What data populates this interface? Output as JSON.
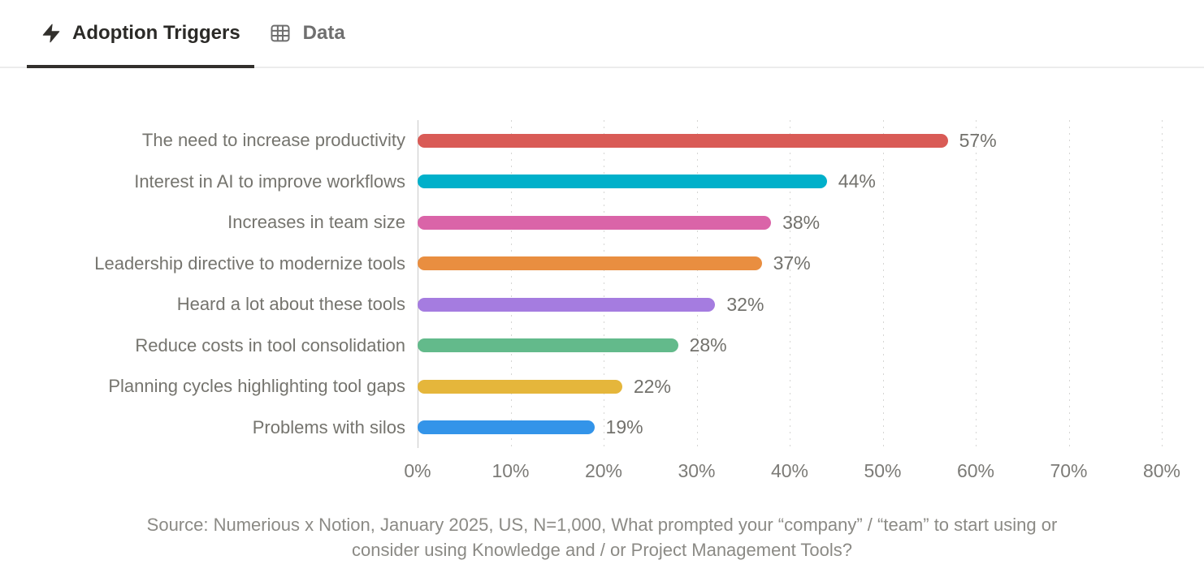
{
  "tabs": [
    {
      "label": "Adoption Triggers",
      "icon": "lightning-icon",
      "active": true
    },
    {
      "label": "Data",
      "icon": "table-icon",
      "active": false
    }
  ],
  "chart_data": {
    "type": "bar",
    "orientation": "horizontal",
    "title": "Adoption Triggers",
    "categories": [
      "The need to increase productivity",
      "Interest in AI to improve workflows",
      "Increases in team size",
      "Leadership directive to modernize tools",
      "Heard a lot about these tools",
      "Reduce costs in tool consolidation",
      "Planning cycles highlighting tool gaps",
      "Problems with silos"
    ],
    "values": [
      57,
      44,
      38,
      37,
      32,
      28,
      22,
      19
    ],
    "value_labels": [
      "57%",
      "44%",
      "38%",
      "37%",
      "32%",
      "28%",
      "22%",
      "19%"
    ],
    "bar_colors": [
      "#d95b56",
      "#00b0ca",
      "#da64a8",
      "#e98e40",
      "#a57ce0",
      "#63ba8b",
      "#e5b63b",
      "#3394e9"
    ],
    "xlim": [
      0,
      80
    ],
    "x_ticks": [
      "0%",
      "10%",
      "20%",
      "30%",
      "40%",
      "50%",
      "60%",
      "70%",
      "80%"
    ],
    "grid": "vertical-dotted",
    "legend": "none"
  },
  "source_note": "Source: Numerious x Notion, January 2025, US, N=1,000, What prompted your “company” / “team” to start using or\nconsider using Knowledge and / or Project Management Tools?"
}
